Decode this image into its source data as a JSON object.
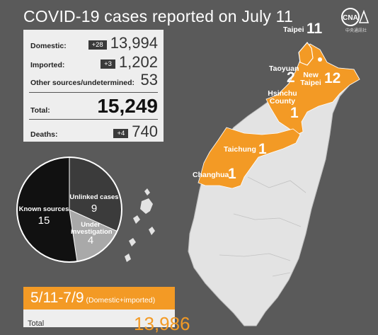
{
  "title": "COVID-19 cases reported on July 11",
  "logo": {
    "text": "CNA",
    "caption": "中央通訊社"
  },
  "stats": {
    "domestic": {
      "label": "Domestic:",
      "change": "+28",
      "value": "13,994"
    },
    "imported": {
      "label": "Imported:",
      "change": "+3",
      "value": "1,202"
    },
    "other": {
      "label": "Other sources/undetermined:",
      "value": "53"
    },
    "total": {
      "label": "Total:",
      "value": "15,249"
    },
    "deaths": {
      "label": "Deaths:",
      "change": "+4",
      "value": "740"
    }
  },
  "pie": {
    "slices": [
      {
        "label": "Known sources",
        "value": "15",
        "color": "#111111"
      },
      {
        "label": "Unlinked cases",
        "value": "9",
        "color": "#3b3b3b"
      },
      {
        "label": "Under investigation",
        "value": "4",
        "color": "#a9a9a9"
      }
    ]
  },
  "regions": [
    {
      "name": "Taipei",
      "count": "11"
    },
    {
      "name": "Taoyuan",
      "count": "2"
    },
    {
      "name": "New Taipei",
      "count": "12"
    },
    {
      "name": "Hsinchu County",
      "count": "1"
    },
    {
      "name": "Taichung",
      "count": "1"
    },
    {
      "name": "Changhua",
      "count": "1"
    }
  ],
  "colors": {
    "background": "#5a5a5a",
    "highlight": "#f39a25",
    "panel": "#eeeeee"
  },
  "summary": {
    "range": "5/11-7/9",
    "note": "(Domestic+imported)",
    "label": "Total",
    "value": "13,986"
  }
}
